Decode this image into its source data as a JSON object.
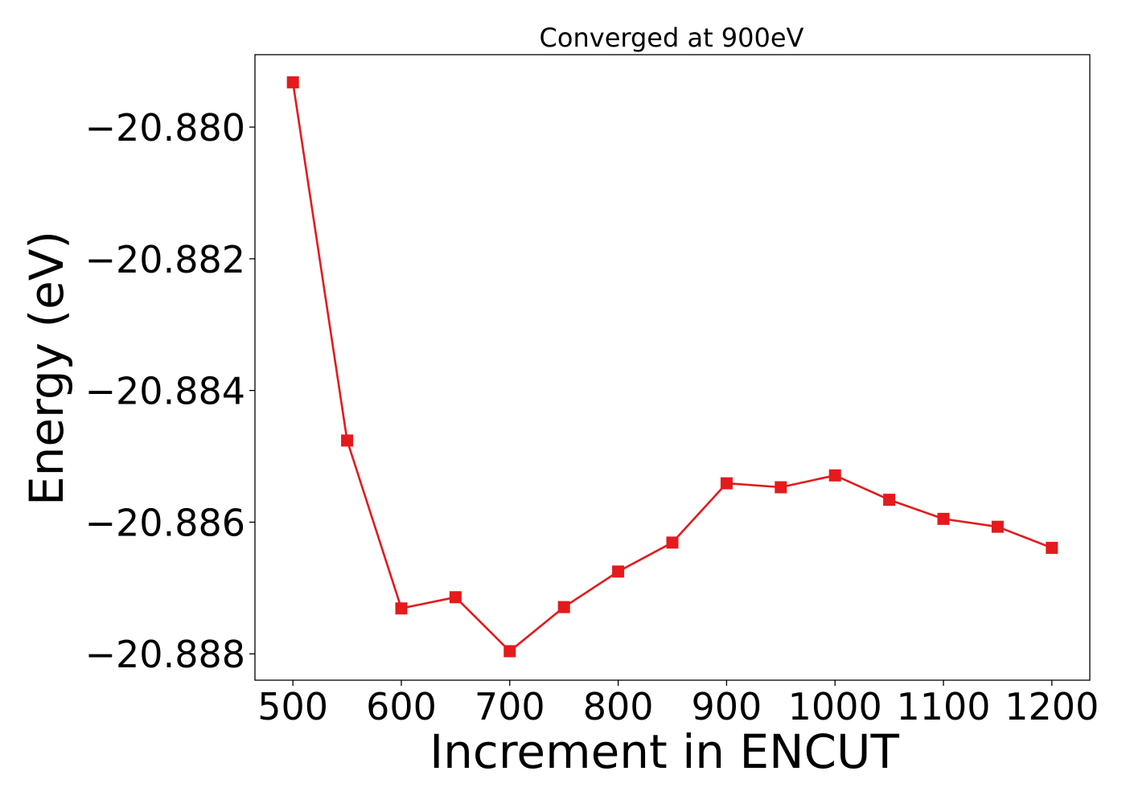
{
  "chart_data": {
    "type": "line",
    "title": "Converged at 900eV",
    "xlabel": "Increment in ENCUT",
    "ylabel": "Energy (eV)",
    "xlim": [
      465,
      1235
    ],
    "ylim": [
      -20.8884,
      -20.8789
    ],
    "xticks": [
      500,
      600,
      700,
      800,
      900,
      1000,
      1100,
      1200
    ],
    "yticks": [
      -20.88,
      -20.882,
      -20.884,
      -20.886,
      -20.888
    ],
    "ytick_labels": [
      "−20.880",
      "−20.882",
      "−20.884",
      "−20.886",
      "−20.888"
    ],
    "grid": false,
    "legend": false,
    "series": [
      {
        "color": "#e41a1c",
        "marker": "square",
        "x": [
          500,
          550,
          600,
          650,
          700,
          750,
          800,
          850,
          900,
          950,
          1000,
          1050,
          1100,
          1150,
          1200
        ],
        "y": [
          -20.87932,
          -20.88476,
          -20.88731,
          -20.88714,
          -20.88796,
          -20.88729,
          -20.88675,
          -20.88631,
          -20.88541,
          -20.88547,
          -20.88529,
          -20.88566,
          -20.88595,
          -20.88607,
          -20.88639
        ]
      }
    ]
  }
}
